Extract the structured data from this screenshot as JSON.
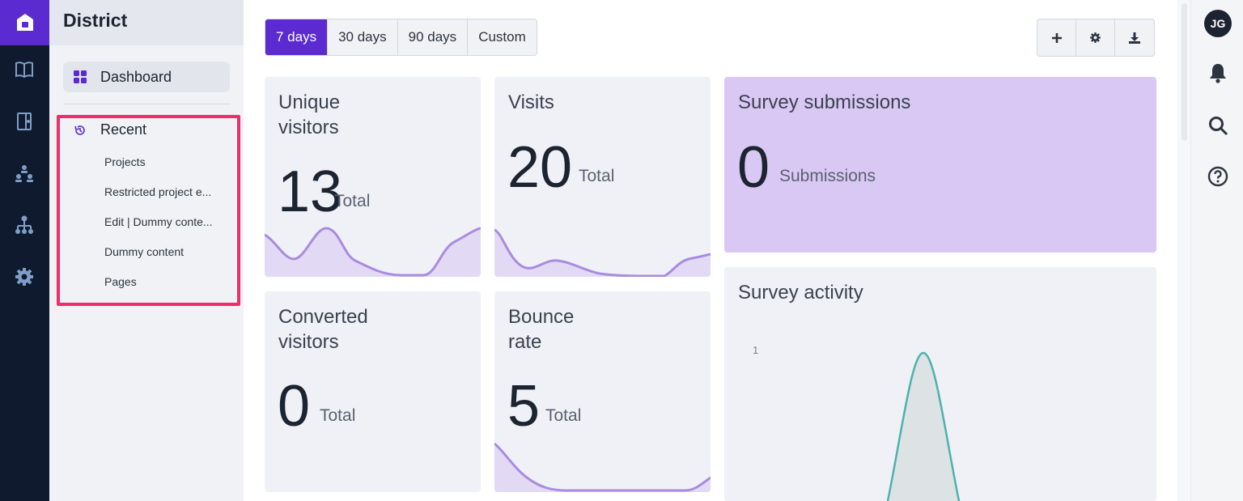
{
  "app": {
    "name": "District"
  },
  "sidebar": {
    "dashboard_label": "Dashboard",
    "recent_label": "Recent",
    "recent_items": [
      "Projects",
      "Restricted project e...",
      "Edit | Dummy conte...",
      "Dummy content",
      "Pages"
    ]
  },
  "user": {
    "initials": "JG"
  },
  "range_tabs": [
    "7 days",
    "30 days",
    "90 days",
    "Custom"
  ],
  "active_range": "7 days",
  "cards": {
    "unique": {
      "title_1": "Unique",
      "title_2": "visitors",
      "value": "13",
      "unit": "Total"
    },
    "visits": {
      "title_1": "Visits",
      "value": "20",
      "unit": "Total"
    },
    "survey": {
      "title": "Survey submissions",
      "value": "0",
      "unit": "Submissions"
    },
    "converted": {
      "title_1": "Converted",
      "title_2": "visitors",
      "value": "0",
      "unit": "Total"
    },
    "bounce": {
      "title_1": "Bounce",
      "title_2": "rate",
      "value": "5",
      "unit": "Total"
    },
    "activity": {
      "title": "Survey activity",
      "y_tick": "1"
    }
  },
  "colors": {
    "accent": "#5b2bd1",
    "highlight": "#ef2d6a",
    "spark": "#a98be0",
    "activity": "#4bb3ad"
  },
  "icons": {
    "rail": [
      "book-icon",
      "door-icon",
      "hierarchy-icon",
      "sitemap-icon",
      "gear-icon"
    ],
    "right": [
      "bell-icon",
      "search-icon",
      "help-icon"
    ],
    "actions": [
      "plus-icon",
      "gear-icon",
      "download-icon"
    ]
  }
}
